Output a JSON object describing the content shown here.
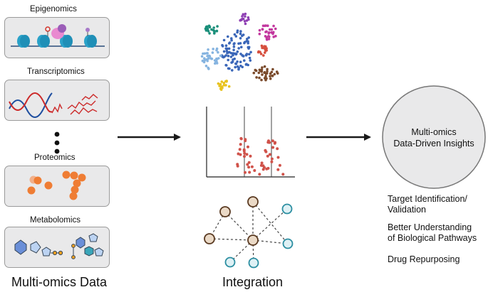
{
  "left": {
    "categories": [
      {
        "name": "Epigenomics"
      },
      {
        "name": "Transcriptomics"
      },
      {
        "name": "Proteomics"
      },
      {
        "name": "Metabolomics"
      }
    ],
    "section_label": "Multi-omics Data"
  },
  "middle": {
    "section_label": "Integration"
  },
  "right": {
    "circle_line1": "Multi-omics",
    "circle_line2": "Data-Driven Insights",
    "insights": [
      {
        "line1": "Target Identification/",
        "line2": "Validation"
      },
      {
        "line1": "Better Understanding",
        "line2": "of Biological Pathways"
      },
      {
        "line1": "Drug Repurposing",
        "line2": ""
      }
    ]
  },
  "colors": {
    "arrow": "#1a1a1a",
    "protein": "#ef7d34",
    "dna_blue": "#1f4fa0",
    "rna_red": "#cc2a2a",
    "node_tan": "#ead9c6",
    "node_teal": "#3aa6b9",
    "circle_fill": "#e9e9ea"
  }
}
